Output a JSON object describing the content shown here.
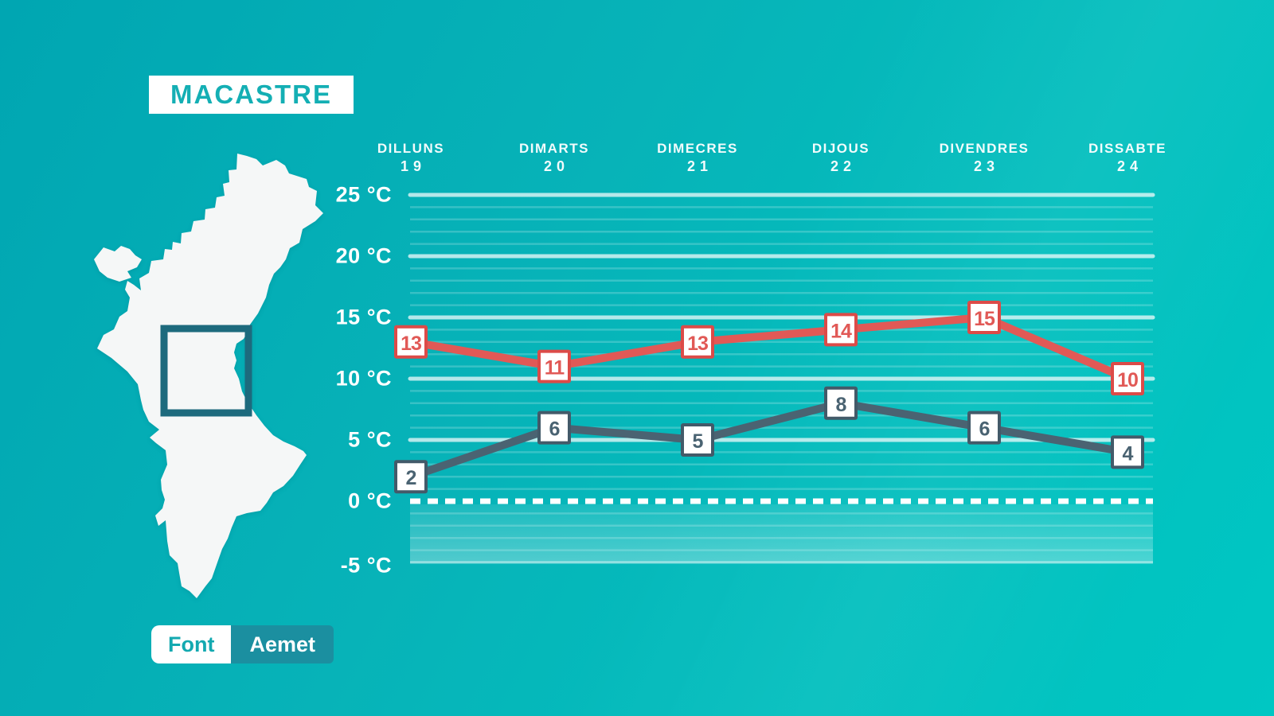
{
  "title": "MACASTRE",
  "source": {
    "label": "Font",
    "value": "Aemet"
  },
  "map": {
    "region": "valencia-community-silhouette",
    "highlight": "macastre-area-square"
  },
  "colors": {
    "background_top_left": "#00a6b2",
    "background_bottom_right": "#00c6c2",
    "title_text": "#14afb4",
    "max_line": "#e15956",
    "max_box_border": "#dc4b48",
    "min_line": "#4a6372",
    "min_box_border": "#435a69",
    "grid_major": "rgba(255,255,255,0.70)",
    "grid_minor": "rgba(255,255,255,0.20)",
    "zero_line": "#ffffff",
    "highlight_square": "#1d6a7d",
    "source_value_bg": "#1b8fa0",
    "map_fill": "#f5f7f7"
  },
  "chart_data": {
    "type": "line",
    "title": "MACASTRE",
    "categories_days": [
      "DILLUNS",
      "DIMARTS",
      "DIMECRES",
      "DIJOUS",
      "DIVENDRES",
      "DISSABTE"
    ],
    "categories_dates": [
      "19",
      "20",
      "21",
      "22",
      "23",
      "24"
    ],
    "series": [
      {
        "name": "max-temp",
        "color": "#e15956",
        "box_border": "#dc4b48",
        "values": [
          13,
          11,
          13,
          14,
          15,
          10
        ]
      },
      {
        "name": "min-temp",
        "color": "#4a6372",
        "box_border": "#435a69",
        "values": [
          2,
          6,
          5,
          8,
          6,
          4
        ]
      }
    ],
    "unit": "°C",
    "yticks": [
      {
        "label": "25 °C",
        "value": 25
      },
      {
        "label": "20 °C",
        "value": 20
      },
      {
        "label": "15 °C",
        "value": 15
      },
      {
        "label": "10 °C",
        "value": 10
      },
      {
        "label": "5 °C",
        "value": 5
      },
      {
        "label": "0 °C",
        "value": 0
      },
      {
        "label": "-5 °C",
        "value": -5
      }
    ],
    "ylim": [
      -5,
      25
    ],
    "grid": "horizontal, major every 5°C (solid white), minor every 1°C (faint)",
    "zero_line_style": "dashed white",
    "subzero_band": [
      -5,
      0
    ],
    "legend": "none"
  }
}
